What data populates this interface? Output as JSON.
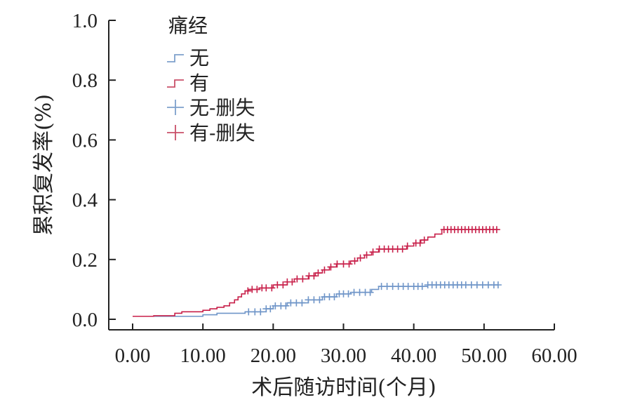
{
  "chart_data": {
    "type": "line",
    "subtype": "kaplan-meier-cumulative-incidence",
    "xlabel": "术后随访时间(个月)",
    "ylabel": "累积复发率(%)",
    "xlim": [
      0,
      60
    ],
    "ylim": [
      0,
      1.0
    ],
    "x_ticks": [
      "0.00",
      "10.00",
      "20.00",
      "30.00",
      "40.00",
      "50.00",
      "60.00"
    ],
    "y_ticks": [
      "0.0",
      "0.2",
      "0.4",
      "0.6",
      "0.8",
      "1.0"
    ],
    "grid": false,
    "legend": {
      "title": "痛经",
      "position": "top-left",
      "entries": [
        {
          "label": "无",
          "symbol": "step",
          "color": "#7ea0cc"
        },
        {
          "label": "有",
          "symbol": "step",
          "color": "#c9506a"
        },
        {
          "label": "无-删失",
          "symbol": "plus",
          "color": "#7ea0cc"
        },
        {
          "label": "有-删失",
          "symbol": "plus",
          "color": "#c9506a"
        }
      ]
    },
    "series": [
      {
        "name": "无",
        "color": "#6f95c8",
        "steps": [
          [
            0,
            0.01
          ],
          [
            10,
            0.015
          ],
          [
            12,
            0.02
          ],
          [
            16,
            0.025
          ],
          [
            19,
            0.035
          ],
          [
            20,
            0.045
          ],
          [
            22,
            0.055
          ],
          [
            25,
            0.065
          ],
          [
            27,
            0.075
          ],
          [
            29,
            0.085
          ],
          [
            31,
            0.09
          ],
          [
            34,
            0.1
          ],
          [
            35,
            0.11
          ],
          [
            42,
            0.115
          ],
          [
            52,
            0.115
          ]
        ],
        "censored": [
          16.5,
          17.4,
          18.2,
          19.0,
          19.6,
          20.3,
          21.1,
          21.8,
          22.5,
          23.3,
          24.1,
          25.0,
          25.8,
          26.6,
          27.3,
          28.0,
          28.7,
          29.4,
          30.0,
          30.7,
          31.5,
          32.3,
          33.1,
          33.8,
          35.4,
          36.2,
          37.0,
          37.8,
          38.5,
          39.2,
          40.0,
          40.6,
          41.2,
          42.0,
          42.6,
          43.2,
          43.8,
          44.4,
          45.0,
          45.6,
          46.2,
          46.8,
          47.4,
          48.2,
          49.0,
          49.8,
          50.6,
          51.4,
          52.0
        ]
      },
      {
        "name": "有",
        "color": "#c8204a",
        "steps": [
          [
            0,
            0.01
          ],
          [
            3,
            0.012
          ],
          [
            6,
            0.02
          ],
          [
            7,
            0.025
          ],
          [
            10,
            0.03
          ],
          [
            11,
            0.035
          ],
          [
            12,
            0.04
          ],
          [
            13,
            0.045
          ],
          [
            13.8,
            0.055
          ],
          [
            14.5,
            0.065
          ],
          [
            15,
            0.075
          ],
          [
            15.5,
            0.085
          ],
          [
            16,
            0.095
          ],
          [
            16.5,
            0.1
          ],
          [
            18,
            0.105
          ],
          [
            20,
            0.115
          ],
          [
            22,
            0.125
          ],
          [
            23,
            0.135
          ],
          [
            25,
            0.145
          ],
          [
            26,
            0.155
          ],
          [
            27,
            0.165
          ],
          [
            28,
            0.175
          ],
          [
            29,
            0.185
          ],
          [
            31,
            0.195
          ],
          [
            32,
            0.205
          ],
          [
            33,
            0.215
          ],
          [
            34,
            0.225
          ],
          [
            35,
            0.235
          ],
          [
            39,
            0.245
          ],
          [
            40,
            0.255
          ],
          [
            41,
            0.265
          ],
          [
            42,
            0.275
          ],
          [
            43,
            0.285
          ],
          [
            44,
            0.3
          ],
          [
            52,
            0.3
          ]
        ],
        "censored": [
          16.4,
          17.0,
          17.7,
          18.4,
          19.0,
          19.8,
          20.6,
          21.4,
          22.0,
          22.7,
          23.4,
          24.2,
          25.1,
          25.8,
          26.4,
          27.3,
          28.2,
          29.1,
          30.0,
          30.8,
          31.6,
          32.4,
          33.3,
          34.2,
          35.1,
          35.8,
          36.4,
          37.0,
          37.7,
          38.4,
          39.1,
          40.3,
          40.9,
          41.5,
          44.3,
          44.8,
          45.3,
          45.8,
          46.3,
          46.8,
          47.3,
          47.8,
          48.3,
          48.8,
          49.3,
          49.8,
          50.3,
          50.8,
          51.3,
          51.8
        ]
      }
    ]
  }
}
